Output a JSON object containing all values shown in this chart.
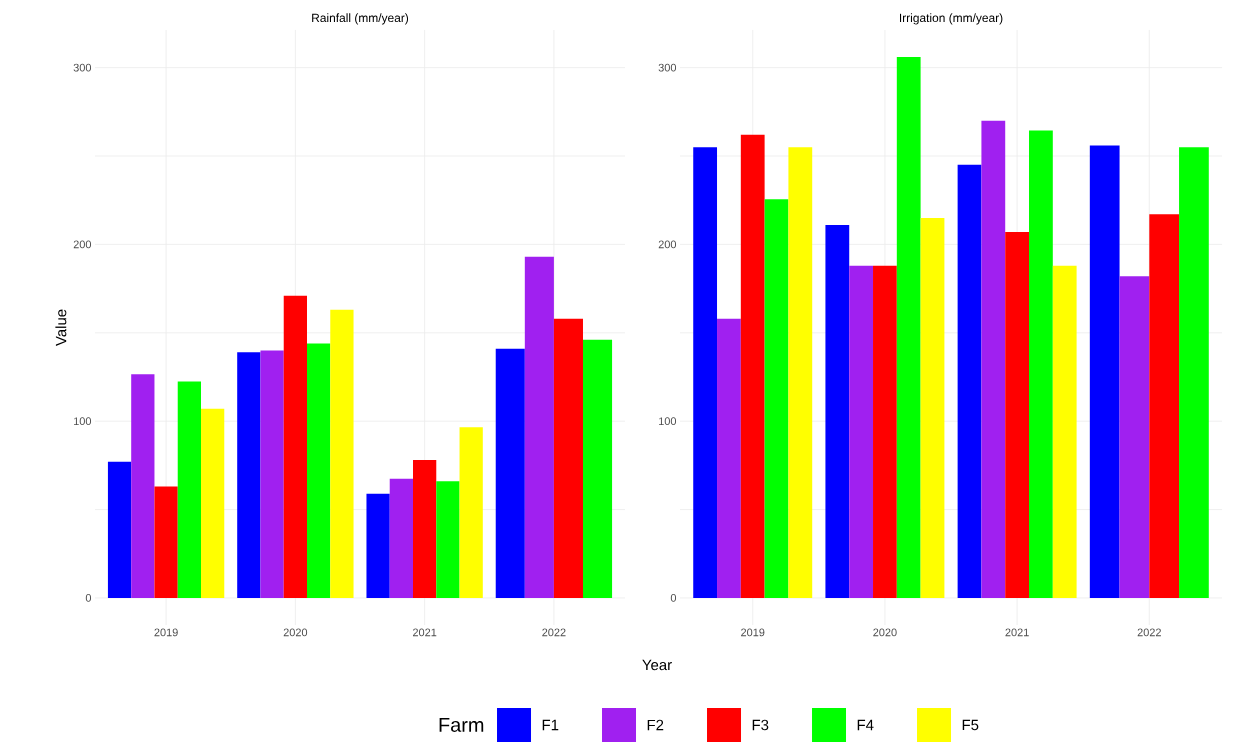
{
  "chart_data": [
    {
      "type": "bar",
      "title": "Rainfall (mm/year)",
      "xlabel": "Year",
      "ylabel": "Value",
      "legend_title": "Farm",
      "legend": "bottom",
      "grid": true,
      "categories": [
        "2019",
        "2020",
        "2021",
        "2022"
      ],
      "series": [
        {
          "name": "F1",
          "color": "#0000ff",
          "values": [
            77,
            139,
            59,
            141
          ]
        },
        {
          "name": "F2",
          "color": "#a020f0",
          "values": [
            126.5,
            140,
            67.5,
            193
          ]
        },
        {
          "name": "F3",
          "color": "#ff0000",
          "values": [
            63,
            171,
            78,
            158
          ]
        },
        {
          "name": "F4",
          "color": "#00ff00",
          "values": [
            122.5,
            144,
            66,
            146
          ]
        },
        {
          "name": "F5",
          "color": "#ffff00",
          "values": [
            107,
            163,
            96.5,
            null
          ]
        }
      ],
      "ylim": [
        -15.3,
        321.3
      ],
      "yticks": [
        0,
        {
          "value": 50,
          "label": null
        },
        100,
        {
          "value": 150,
          "label": null
        },
        200,
        {
          "value": 250,
          "label": null
        },
        300
      ]
    },
    {
      "type": "bar",
      "title": "Irrigation (mm/year)",
      "grid": true,
      "categories": [
        "2019",
        "2020",
        "2021",
        "2022"
      ],
      "series": [
        {
          "color": "#0000ff",
          "values": [
            255,
            211,
            245,
            256
          ]
        },
        {
          "color": "#a020f0",
          "values": [
            158,
            188,
            270,
            182
          ]
        },
        {
          "color": "#ff0000",
          "values": [
            262,
            188,
            207,
            217
          ]
        },
        {
          "color": "#00ff00",
          "values": [
            225.5,
            306,
            264.5,
            255
          ]
        },
        {
          "color": "#ffff00",
          "values": [
            255,
            215,
            188,
            null
          ]
        }
      ],
      "ylim": [
        -15.3,
        321.3
      ],
      "yticks": [
        0,
        {
          "value": 50,
          "label": null
        },
        100,
        {
          "value": 150,
          "label": null
        },
        200,
        {
          "value": 250,
          "label": null
        },
        300
      ]
    }
  ]
}
